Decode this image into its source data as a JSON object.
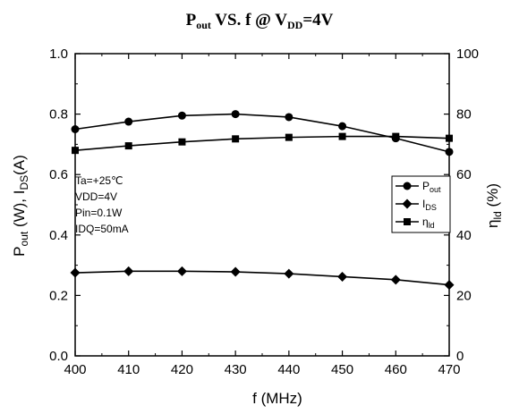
{
  "chart_data": {
    "type": "line",
    "title": {
      "parts": [
        {
          "text": "P",
          "sub": false
        },
        {
          "text": "out",
          "sub": true
        },
        {
          "text": " VS. f @ V",
          "sub": false
        },
        {
          "text": "DD",
          "sub": true
        },
        {
          "text": "=4V",
          "sub": false
        }
      ]
    },
    "xlabel": "f (MHz)",
    "ylabel_left": {
      "parts": [
        {
          "text": "P",
          "sub": false
        },
        {
          "text": "out",
          "sub": true
        },
        {
          "text": " (W), I",
          "sub": false
        },
        {
          "text": "DS",
          "sub": true
        },
        {
          "text": "(A)",
          "sub": false
        }
      ]
    },
    "ylabel_right": {
      "parts": [
        {
          "text": "η",
          "sub": false
        },
        {
          "text": "ld",
          "sub": true
        },
        {
          "text": " (%)",
          "sub": false
        }
      ]
    },
    "xlim": [
      400,
      470
    ],
    "ylim_left": [
      0.0,
      1.0
    ],
    "ylim_right": [
      0,
      100
    ],
    "x_ticks": [
      "400",
      "410",
      "420",
      "430",
      "440",
      "450",
      "460",
      "470"
    ],
    "y_ticks_left": [
      "0.0",
      "0.2",
      "0.4",
      "0.6",
      "0.8",
      "1.0"
    ],
    "y_ticks_right": [
      "0",
      "20",
      "40",
      "60",
      "80",
      "100"
    ],
    "grid": false,
    "legend_position": "right",
    "annotation_lines": [
      "Ta=+25℃",
      "VDD=4V",
      "Pin=0.1W",
      "IDQ=50mA"
    ],
    "x": [
      400,
      410,
      420,
      430,
      440,
      450,
      460,
      470
    ],
    "series": [
      {
        "name": "Pout",
        "legend": {
          "main": "P",
          "sub": "out"
        },
        "marker": "circle",
        "axis": "left",
        "values": [
          0.75,
          0.775,
          0.795,
          0.8,
          0.79,
          0.76,
          0.72,
          0.675
        ]
      },
      {
        "name": "IDS",
        "legend": {
          "main": "I",
          "sub": "DS"
        },
        "marker": "diamond",
        "axis": "left",
        "values": [
          0.275,
          0.28,
          0.28,
          0.278,
          0.272,
          0.262,
          0.252,
          0.235
        ]
      },
      {
        "name": "ηld",
        "legend": {
          "main": "η",
          "sub": "ld"
        },
        "marker": "square",
        "axis": "right",
        "values": [
          68,
          69.5,
          70.8,
          71.8,
          72.3,
          72.6,
          72.6,
          72.0
        ]
      }
    ]
  }
}
